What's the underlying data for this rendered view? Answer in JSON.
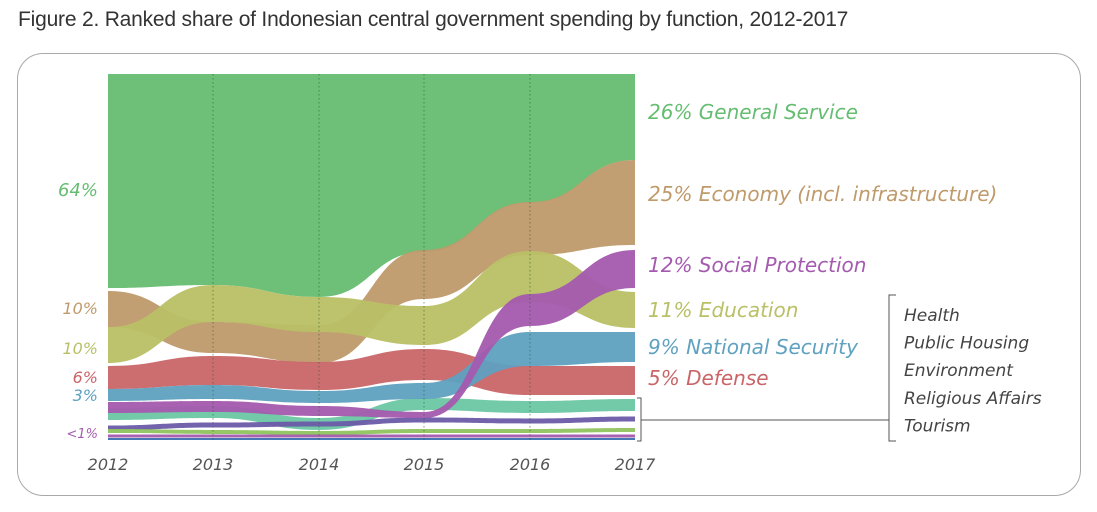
{
  "title": "Figure 2. Ranked share of Indonesian central government spending by function, 2012-2017",
  "chart_data": {
    "type": "area",
    "subtype": "ranked-bump-stream",
    "x": [
      "2012",
      "2013",
      "2014",
      "2015",
      "2016",
      "2017"
    ],
    "grid": "dotted vertical lines at each year",
    "left_labels": [
      {
        "text": "64%",
        "series": "General Service",
        "color": "#66bd72"
      },
      {
        "text": "10%",
        "series": "Economy (incl. infrastructure)",
        "color": "#bf9a6b"
      },
      {
        "text": "10%",
        "series": "Education",
        "color": "#b9c065"
      },
      {
        "text": "6%",
        "series": "Defense",
        "color": "#c96568"
      },
      {
        "text": "3%",
        "series": "National Security",
        "color": "#5fa1c0"
      },
      {
        "text": "<1%",
        "series": "small functions",
        "color": "#a45aae"
      }
    ],
    "series": [
      {
        "name": "General Service",
        "label": "26% General Service",
        "share_2012": 64,
        "share_2017": 26,
        "color": "#66bd72",
        "rank": [
          1,
          1,
          1,
          1,
          1,
          1
        ]
      },
      {
        "name": "Economy (incl. infrastructure)",
        "label": "25% Economy (incl. infrastructure)",
        "share_2012": 10,
        "share_2017": 25,
        "color": "#bf9a6b",
        "rank": [
          2,
          3,
          3,
          2,
          2,
          2
        ]
      },
      {
        "name": "Social Protection",
        "label": "12% Social Protection",
        "share_2012": null,
        "share_2017": 12,
        "color": "#a45aae",
        "rank": [
          6,
          7,
          7,
          7,
          4,
          3
        ]
      },
      {
        "name": "Education",
        "label": "11% Education",
        "share_2012": 10,
        "share_2017": 11,
        "color": "#b9c065",
        "rank": [
          3,
          2,
          2,
          3,
          3,
          4
        ]
      },
      {
        "name": "National Security",
        "label": "9% National Security",
        "share_2012": 3,
        "share_2017": 9,
        "color": "#5fa1c0",
        "rank": [
          5,
          5,
          5,
          5,
          5,
          5
        ]
      },
      {
        "name": "Defense",
        "label": "5% Defense",
        "share_2012": 6,
        "share_2017": 5,
        "color": "#c96568",
        "rank": [
          4,
          4,
          4,
          4,
          6,
          6
        ]
      }
    ],
    "small_functions": [
      "Health",
      "Public Housing",
      "Environment",
      "Religious Affairs",
      "Tourism"
    ],
    "small_colors": [
      "#6cc7a3",
      "#6b5aa8",
      "#8fc45e",
      "#a45aae",
      "#3c6fb0"
    ]
  }
}
